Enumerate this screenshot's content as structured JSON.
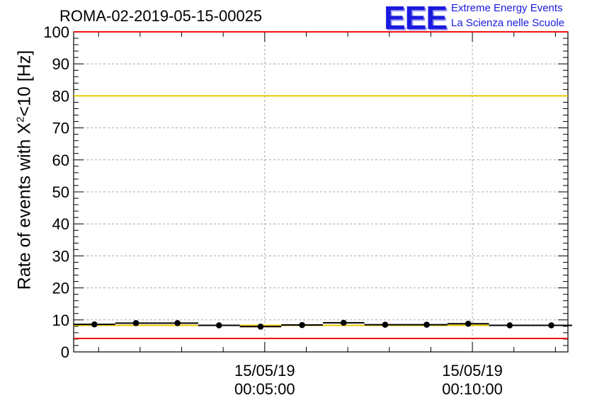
{
  "chart_data": {
    "type": "scatter",
    "title": "ROMA-02-2019-05-15-00025",
    "ylabel_pre": "Rate of events with X",
    "ylabel_sup": "2",
    "ylabel_post": "<10 [Hz]",
    "xlabel": "",
    "ylim": [
      0,
      100
    ],
    "yticks": [
      0,
      10,
      20,
      30,
      40,
      50,
      60,
      70,
      80,
      90,
      100
    ],
    "xlim_min": [
      0.4,
      12.3
    ],
    "xtick_labels": [
      {
        "at_min": 5,
        "line1": "15/05/19",
        "line2": "00:05:00"
      },
      {
        "at_min": 10,
        "line1": "15/05/19",
        "line2": "00:10:00"
      }
    ],
    "grid": true,
    "series": [
      {
        "x_min": [
          0.9,
          1.9,
          2.9,
          3.9,
          4.9,
          5.9,
          6.9,
          7.9,
          8.9,
          9.9,
          10.9,
          11.9
        ],
        "values": [
          8.6,
          9.0,
          9.0,
          8.3,
          7.9,
          8.4,
          9.1,
          8.5,
          8.5,
          8.8,
          8.3,
          8.3
        ],
        "xerr_min": 0.5
      }
    ],
    "reference_lines": [
      {
        "value": 100,
        "color": "#ee1111"
      },
      {
        "value": 80,
        "color": "#e8c800"
      },
      {
        "value": 8.3,
        "color": "#e8c800"
      },
      {
        "value": 4.2,
        "color": "#ee1111"
      }
    ]
  },
  "logo": {
    "text": "EEE",
    "line1": "Extreme Energy Events",
    "line2": "La Scienza nelle Scuole"
  }
}
